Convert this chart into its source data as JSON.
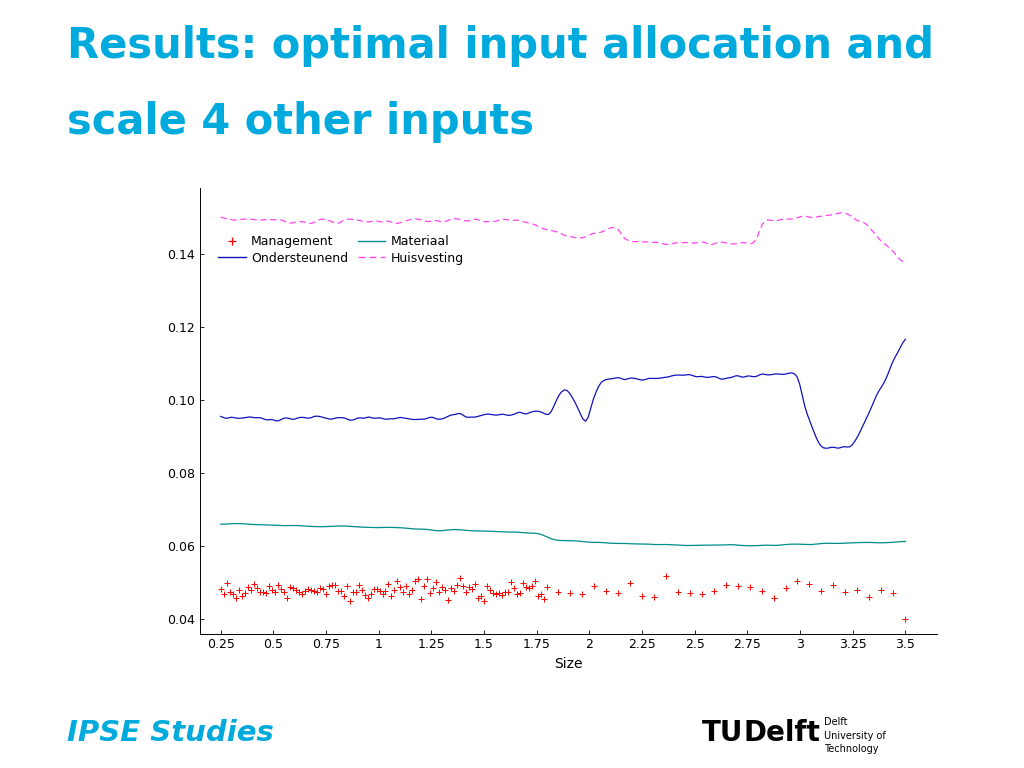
{
  "title_line1": "Results: optimal input allocation and",
  "title_line2": "scale 4 other inputs",
  "title_color": "#00AADD",
  "background_color": "#FFFFFF",
  "footer_bar_color": "#29ABD4",
  "xlabel": "Size",
  "xlim": [
    0.15,
    3.65
  ],
  "ylim": [
    0.036,
    0.158
  ],
  "yticks": [
    0.04,
    0.06,
    0.08,
    0.1,
    0.12,
    0.14
  ],
  "xticks": [
    0.25,
    0.5,
    0.75,
    1.0,
    1.25,
    1.5,
    1.75,
    2.0,
    2.25,
    2.5,
    2.75,
    3.0,
    3.25,
    3.5
  ],
  "ipse_color": "#00AADD"
}
